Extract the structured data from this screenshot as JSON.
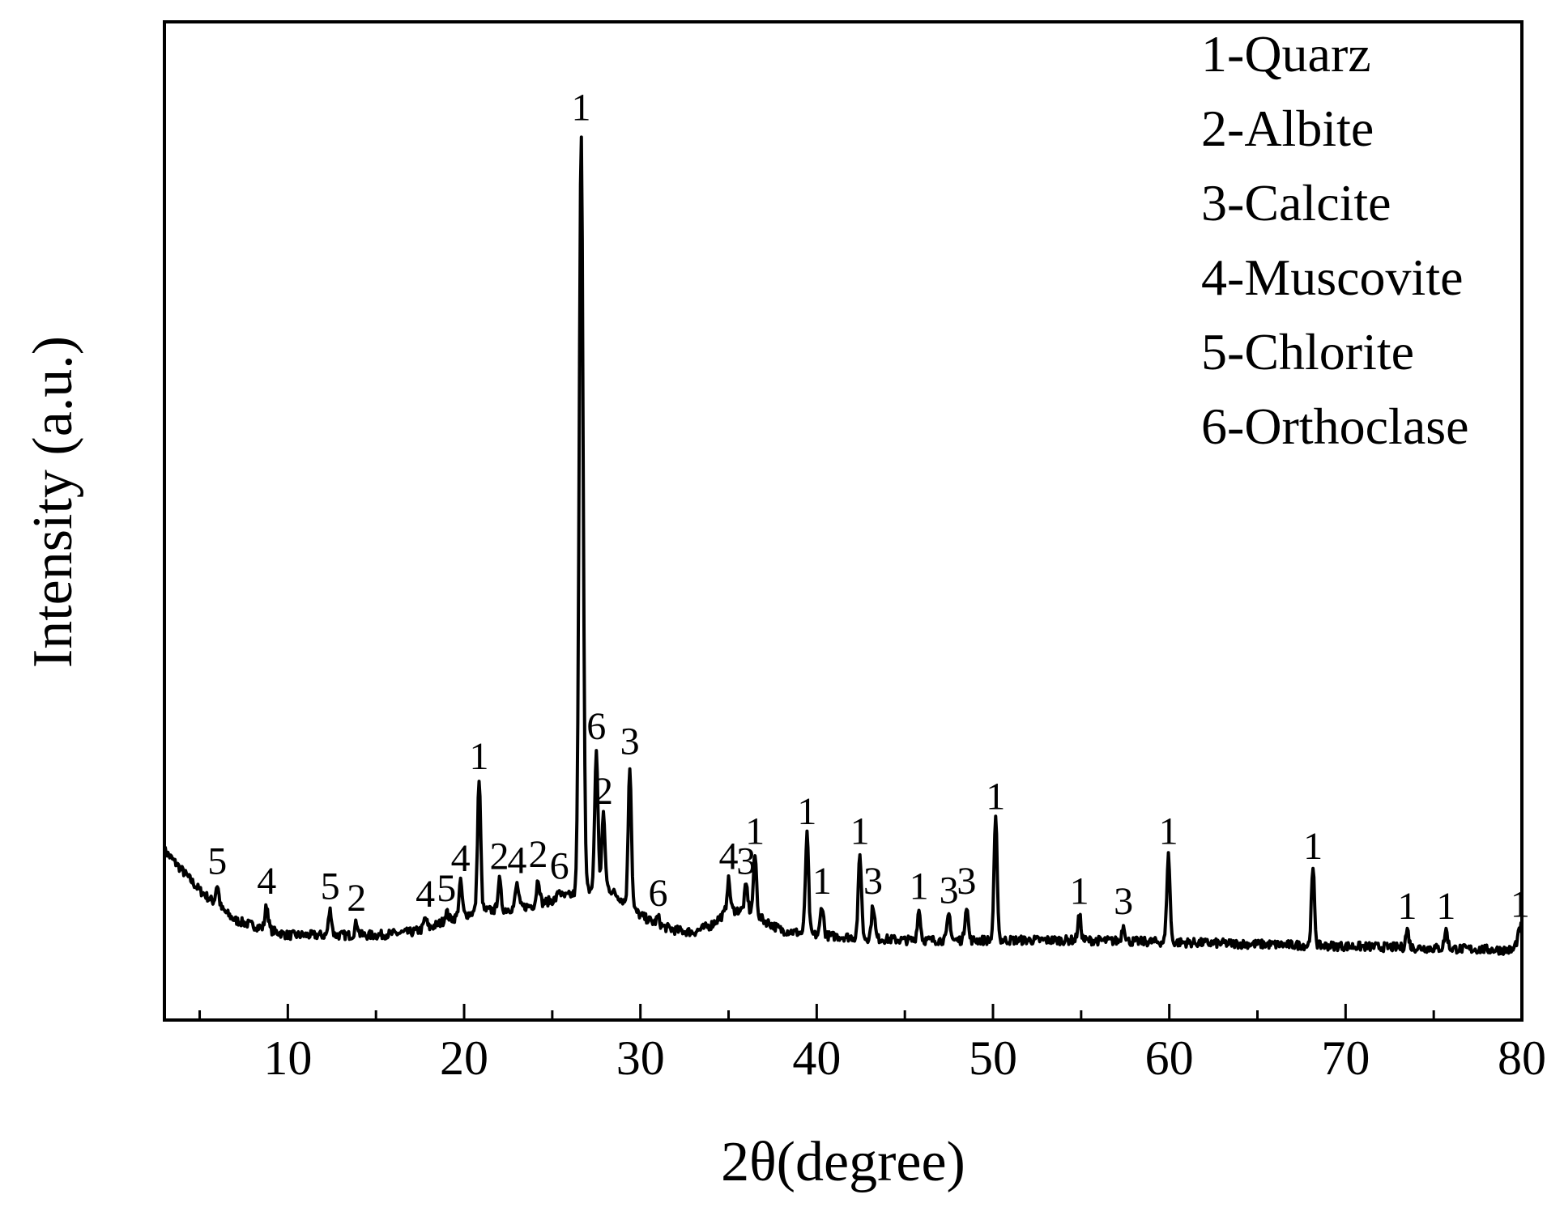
{
  "chart_data": {
    "type": "line",
    "xlabel": "2θ(degree)",
    "ylabel": "Intensity (a.u.)",
    "xlim": [
      3,
      80
    ],
    "ylim": [
      0,
      100
    ],
    "xticks": [
      10,
      20,
      30,
      40,
      50,
      60,
      70,
      80
    ],
    "grid": false,
    "legend_position": "top-right",
    "legend": [
      "1-Quarz",
      "2-Albite",
      "3-Calcite",
      "4-Muscovite",
      "5-Chlorite",
      "6-Orthoclase"
    ],
    "line_color": "#000000",
    "baseline": [
      [
        3,
        17
      ],
      [
        4,
        15
      ],
      [
        5,
        13
      ],
      [
        6,
        11.5
      ],
      [
        7,
        10
      ],
      [
        8,
        9.5
      ],
      [
        9,
        9
      ],
      [
        10,
        8.5
      ],
      [
        12,
        8.5
      ],
      [
        15,
        8.5
      ],
      [
        17,
        8.8
      ],
      [
        18,
        9.2
      ],
      [
        19,
        10
      ],
      [
        20,
        10.5
      ],
      [
        21,
        11
      ],
      [
        22,
        11
      ],
      [
        24,
        11.5
      ],
      [
        25,
        12
      ],
      [
        26,
        12.5
      ],
      [
        27,
        13
      ],
      [
        28,
        13.5
      ],
      [
        29,
        12
      ],
      [
        30,
        10.5
      ],
      [
        31,
        9.5
      ],
      [
        32,
        9
      ],
      [
        33,
        8.8
      ],
      [
        34,
        9.5
      ],
      [
        35,
        11
      ],
      [
        36,
        11
      ],
      [
        37,
        10
      ],
      [
        38,
        9
      ],
      [
        40,
        8.5
      ],
      [
        45,
        8
      ],
      [
        50,
        8
      ],
      [
        55,
        8
      ],
      [
        60,
        7.8
      ],
      [
        65,
        7.6
      ],
      [
        70,
        7.4
      ],
      [
        75,
        7.2
      ],
      [
        79.5,
        7
      ],
      [
        80,
        9
      ]
    ],
    "peaks": [
      {
        "x": 6.0,
        "y": 13.5,
        "label": "5"
      },
      {
        "x": 8.8,
        "y": 11.5,
        "label": "4"
      },
      {
        "x": 12.4,
        "y": 11,
        "label": "5"
      },
      {
        "x": 13.9,
        "y": 9.8,
        "label": "2"
      },
      {
        "x": 17.8,
        "y": 10.2,
        "label": "4"
      },
      {
        "x": 19.0,
        "y": 10.8,
        "label": "5"
      },
      {
        "x": 19.8,
        "y": 13.8,
        "label": "4"
      },
      {
        "x": 20.85,
        "y": 24,
        "label": "1"
      },
      {
        "x": 22.0,
        "y": 14,
        "label": "2"
      },
      {
        "x": 23.0,
        "y": 13.6,
        "label": "4"
      },
      {
        "x": 24.2,
        "y": 14.2,
        "label": "2"
      },
      {
        "x": 25.4,
        "y": 13,
        "label": "6"
      },
      {
        "x": 26.64,
        "y": 89,
        "label": "1"
      },
      {
        "x": 27.5,
        "y": 27,
        "label": "6"
      },
      {
        "x": 27.9,
        "y": 20.5,
        "label": "2"
      },
      {
        "x": 29.4,
        "y": 25.5,
        "label": "3"
      },
      {
        "x": 31.0,
        "y": 10.3,
        "label": "6"
      },
      {
        "x": 35.0,
        "y": 14,
        "label": "4"
      },
      {
        "x": 36.0,
        "y": 13.5,
        "label": "3"
      },
      {
        "x": 36.5,
        "y": 16.5,
        "label": "1"
      },
      {
        "x": 39.45,
        "y": 18.5,
        "label": "1"
      },
      {
        "x": 40.3,
        "y": 11.5,
        "label": "1"
      },
      {
        "x": 42.45,
        "y": 16.5,
        "label": "1"
      },
      {
        "x": 43.2,
        "y": 11.5,
        "label": "3"
      },
      {
        "x": 45.8,
        "y": 11,
        "label": "1"
      },
      {
        "x": 47.5,
        "y": 10.6,
        "label": "3"
      },
      {
        "x": 48.5,
        "y": 11.5,
        "label": "3"
      },
      {
        "x": 50.15,
        "y": 20,
        "label": "1"
      },
      {
        "x": 54.9,
        "y": 10.5,
        "label": "1"
      },
      {
        "x": 57.4,
        "y": 9.5,
        "label": "3"
      },
      {
        "x": 59.95,
        "y": 16.5,
        "label": "1"
      },
      {
        "x": 68.15,
        "y": 15,
        "label": "1"
      },
      {
        "x": 73.5,
        "y": 9,
        "label": "1"
      },
      {
        "x": 75.7,
        "y": 9,
        "label": "1"
      },
      {
        "x": 79.9,
        "y": 9.2,
        "label": "1"
      }
    ]
  }
}
